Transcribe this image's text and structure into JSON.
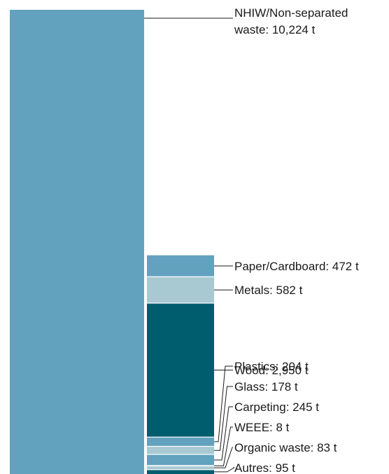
{
  "chart_data": {
    "type": "bar",
    "unit": "t",
    "colors": {
      "mid_blue": "#63a2bf",
      "light_blue": "#a9c9d2",
      "dark_teal": "#005d6e"
    },
    "total_bar": {
      "name": "NHIW/Non-separated waste",
      "value": 10224,
      "label_lines": [
        "NHIW/Non-separated",
        "waste: 10,224 t"
      ],
      "color": "#63a2bf"
    },
    "stack": [
      {
        "name": "Paper/Cardboard",
        "value": 472,
        "label": "Paper/Cardboard: 472 t",
        "color": "#63a2bf"
      },
      {
        "name": "Metals",
        "value": 582,
        "label": "Metals: 582 t",
        "color": "#a9c9d2"
      },
      {
        "name": "Wood",
        "value": 2950,
        "label": "Wood: 2,950 t",
        "color": "#005d6e"
      },
      {
        "name": "Plastics",
        "value": 204,
        "label": "Plastics: 204 t",
        "color": "#63a2bf"
      },
      {
        "name": "Glass",
        "value": 178,
        "label": "Glass: 178 t",
        "color": "#a9c9d2"
      },
      {
        "name": "Carpeting",
        "value": 245,
        "label": "Carpeting: 245 t",
        "color": "#63a2bf"
      },
      {
        "name": "WEEE",
        "value": 8,
        "label": "WEEE: 8 t",
        "color": "#005d6e"
      },
      {
        "name": "Organic waste",
        "value": 83,
        "label": "Organic waste: 83 t",
        "color": "#a9c9d2"
      },
      {
        "name": "Autres",
        "value": 95,
        "label": "Autres: 95 t",
        "color": "#005d6e"
      }
    ]
  }
}
